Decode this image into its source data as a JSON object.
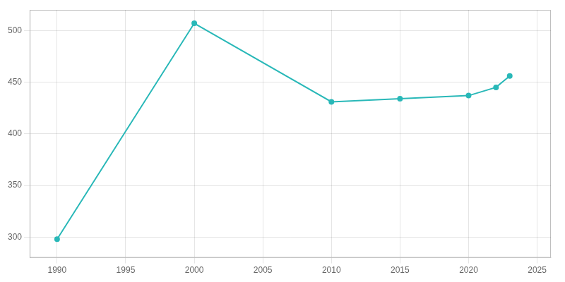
{
  "chart_data": {
    "type": "line",
    "x": [
      1990,
      2000,
      2010,
      2015,
      2020,
      2022,
      2023
    ],
    "values": [
      298,
      507,
      431,
      434,
      437,
      445,
      456
    ],
    "color": "#29b8b8",
    "marker": "o",
    "xlim": [
      1988,
      2026
    ],
    "xticks": [
      1990,
      1995,
      2000,
      2005,
      2010,
      2015,
      2020,
      2025
    ],
    "ylim": [
      280,
      520
    ],
    "yticks": [
      300,
      350,
      400,
      450,
      500
    ],
    "grid": true
  }
}
